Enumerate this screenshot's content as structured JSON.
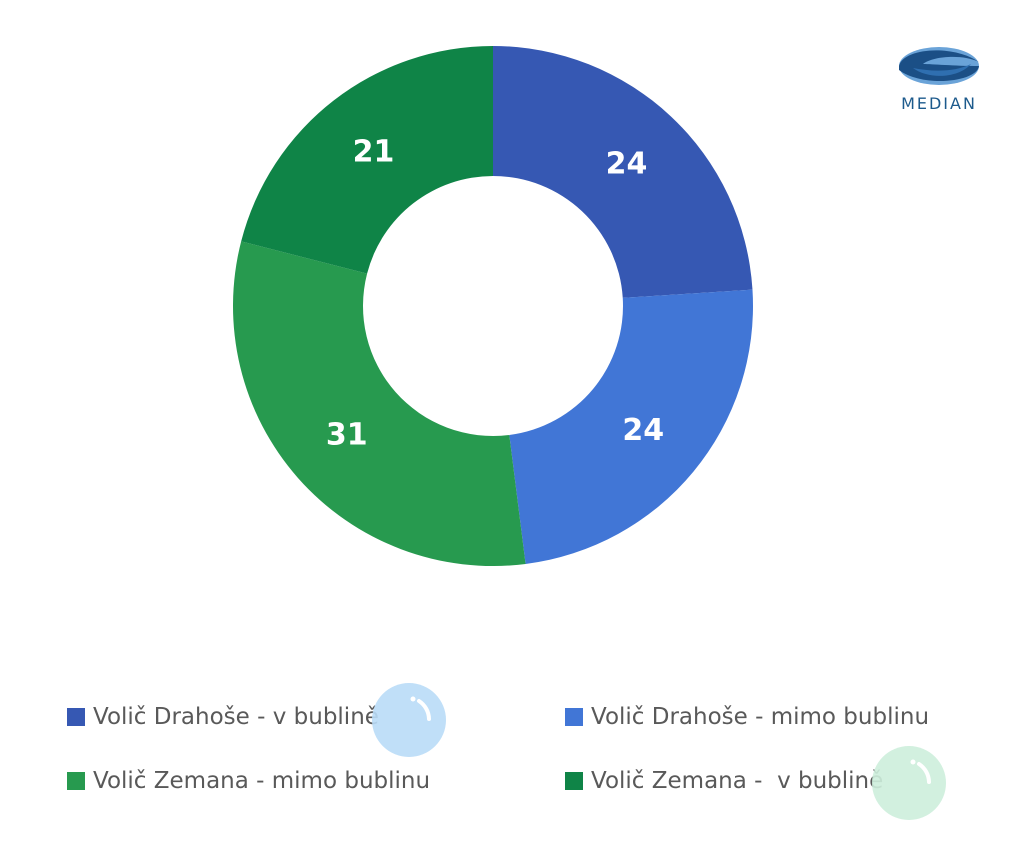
{
  "logo": {
    "text": "MEDIAN",
    "colors": {
      "dark": "#1b4f86",
      "light": "#6aa3d8"
    }
  },
  "chart_data": {
    "type": "pie",
    "donut": true,
    "start_angle_deg": 0,
    "direction": "clockwise",
    "title": "",
    "legend_position": "bottom",
    "slices": [
      {
        "label": "Volič Drahoše - v bublině",
        "value": 24,
        "display": "24",
        "color": "#3658b3"
      },
      {
        "label": "Volič Drahoše - mimo bublinu",
        "value": 24,
        "display": "24",
        "color": "#4176d6"
      },
      {
        "label": "Volič Zemana - mimo bublinu",
        "value": 31,
        "display": "31",
        "color": "#279a4f"
      },
      {
        "label": "Volič Zemana -  v bublině",
        "value": 21,
        "display": "21",
        "color": "#0f8447"
      }
    ]
  },
  "decorations": {
    "bubble_blue_color": "#b9dcf7",
    "bubble_green_color": "#cdeedb"
  }
}
